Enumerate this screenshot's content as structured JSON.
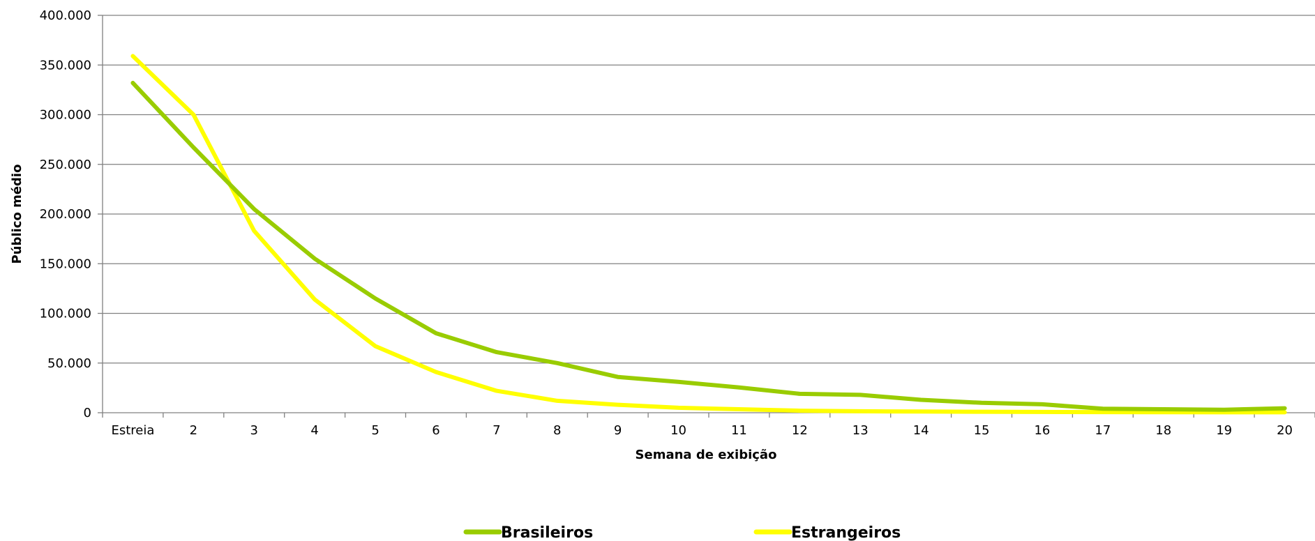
{
  "chart_data": {
    "type": "line",
    "xlabel": "Semana de exibição",
    "ylabel": "Público médio",
    "categories": [
      "Estreia",
      "2",
      "3",
      "4",
      "5",
      "6",
      "7",
      "8",
      "9",
      "10",
      "11",
      "12",
      "13",
      "14",
      "15",
      "16",
      "17",
      "18",
      "19",
      "20"
    ],
    "ylim": [
      0,
      400000
    ],
    "yticks": [
      0,
      50000,
      100000,
      150000,
      200000,
      250000,
      300000,
      350000,
      400000
    ],
    "ytick_labels": [
      "0",
      "50.000",
      "100.000",
      "150.000",
      "200.000",
      "250.000",
      "300.000",
      "350.000",
      "400.000"
    ],
    "grid": true,
    "legend_position": "bottom",
    "series": [
      {
        "name": "Brasileiros",
        "color": "#99cc00",
        "values": [
          332000,
          267000,
          205000,
          155000,
          115000,
          80000,
          61000,
          50000,
          36000,
          31000,
          25500,
          19000,
          18000,
          13000,
          10000,
          8500,
          4000,
          3500,
          3000,
          4500
        ]
      },
      {
        "name": "Estrangeiros",
        "color": "#ffff00",
        "values": [
          359000,
          300000,
          183000,
          114000,
          67000,
          41000,
          22000,
          12000,
          8000,
          5000,
          3500,
          2000,
          1500,
          1200,
          1000,
          800,
          600,
          500,
          400,
          400
        ]
      }
    ]
  }
}
